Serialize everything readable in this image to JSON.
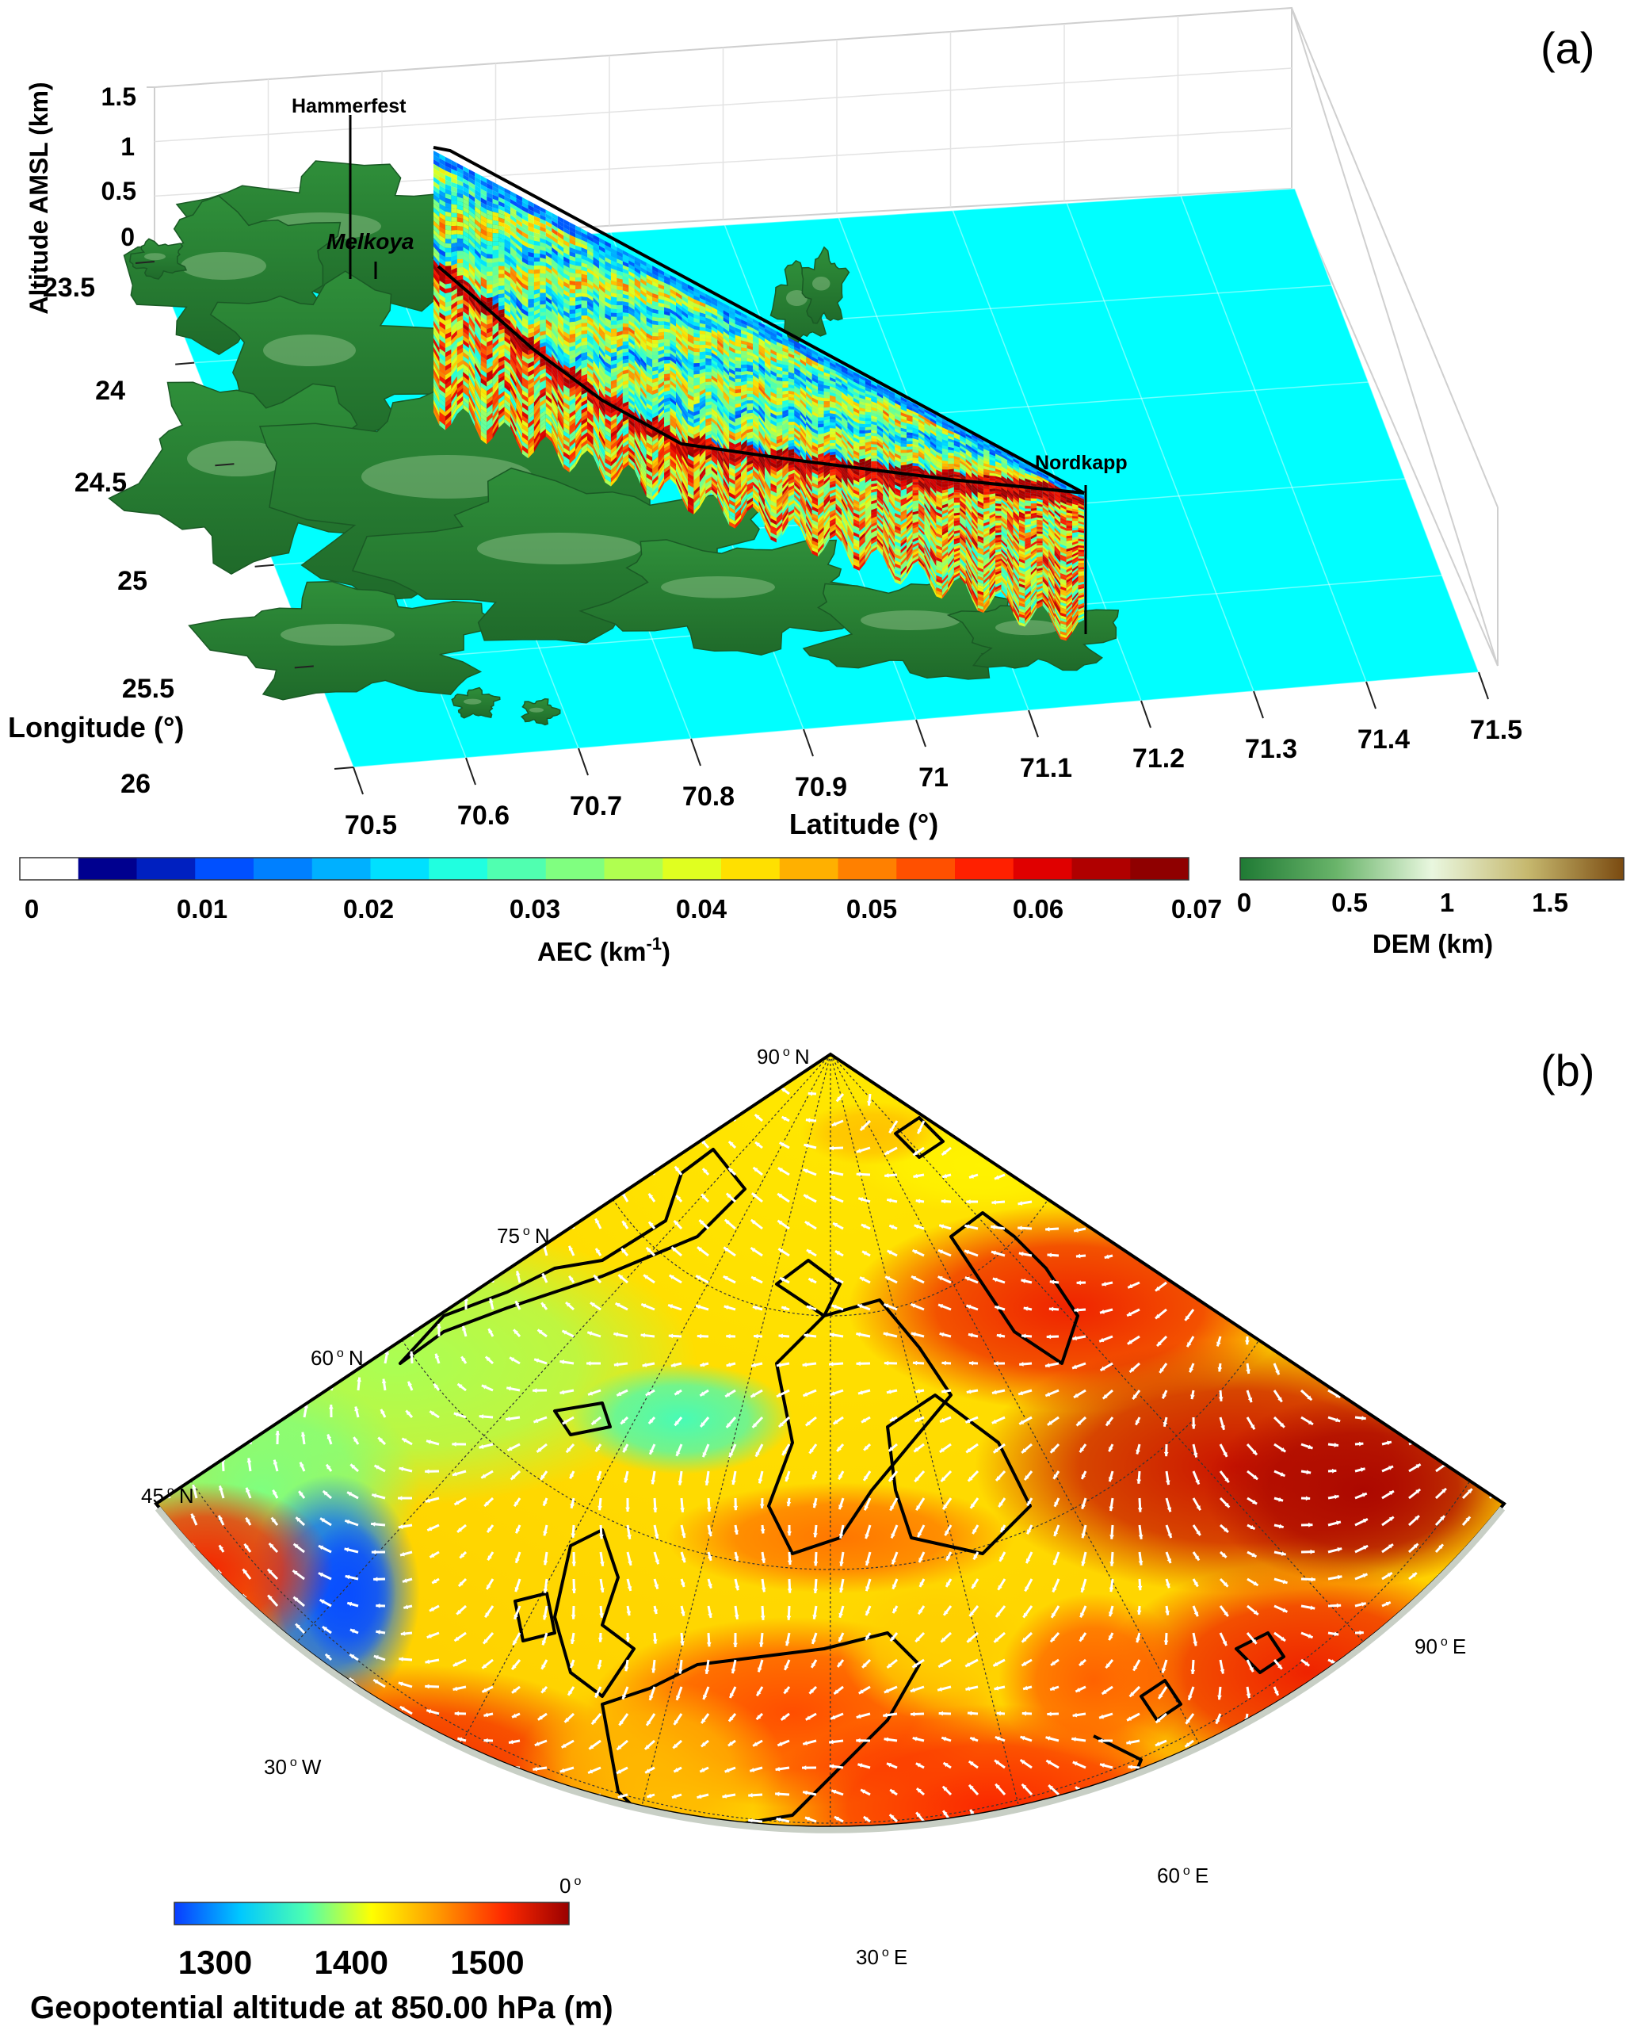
{
  "panel_a": {
    "label": "(a)",
    "axes": {
      "z_label": "Altitude AMSL (km)",
      "z_ticks": [
        "0",
        "0.5",
        "1",
        "1.5"
      ],
      "lon_label": "Longitude (°)",
      "lon_ticks": [
        "23.5",
        "24",
        "24.5",
        "25",
        "25.5",
        "26"
      ],
      "lat_label": "Latitude (°)",
      "lat_ticks": [
        "70.5",
        "70.6",
        "70.7",
        "70.8",
        "70.9",
        "71",
        "71.1",
        "71.2",
        "71.3",
        "71.4",
        "71.5"
      ]
    },
    "places": [
      {
        "name": "Hammerfest",
        "italic": false
      },
      {
        "name": "Melkoya",
        "italic": true
      },
      {
        "name": "Nordkapp",
        "italic": false
      }
    ],
    "colors": {
      "sea": "#00ffff",
      "land": "#3d8a3a",
      "land_light": "#b9ddb0"
    }
  },
  "aec_colorbar": {
    "label": "AEC (km",
    "label_exp": "-1",
    "label_close": ")",
    "ticks": [
      "0",
      "0.01",
      "0.02",
      "0.03",
      "0.04",
      "0.05",
      "0.06",
      "0.07"
    ],
    "range": [
      0,
      0.07
    ],
    "colors": [
      "#ffffff",
      "#00008f",
      "#0020c0",
      "#0050ff",
      "#0080ff",
      "#00b0ff",
      "#00e0ff",
      "#20ffe0",
      "#50ffb0",
      "#80ff80",
      "#b0ff50",
      "#e0ff20",
      "#ffe000",
      "#ffb000",
      "#ff8000",
      "#ff5000",
      "#ff2000",
      "#e00000",
      "#b00000",
      "#8f0000"
    ]
  },
  "dem_colorbar": {
    "label": "DEM (km)",
    "ticks": [
      "0",
      "0.5",
      "1",
      "1.5"
    ],
    "range": [
      0,
      1.8
    ],
    "colors": [
      "#1f7a34",
      "#69b46a",
      "#e9f7df",
      "#c6b86e",
      "#7a4a10"
    ]
  },
  "panel_b": {
    "label": "(b)",
    "lat_labels": [
      {
        "deg": "90",
        "hemi": "N"
      },
      {
        "deg": "75",
        "hemi": "N"
      },
      {
        "deg": "60",
        "hemi": "N"
      },
      {
        "deg": "45",
        "hemi": "N"
      }
    ],
    "lon_labels": [
      {
        "deg": "30",
        "hemi": "W"
      },
      {
        "deg": "0",
        "hemi": ""
      },
      {
        "deg": "30",
        "hemi": "E"
      },
      {
        "deg": "60",
        "hemi": "E"
      },
      {
        "deg": "90",
        "hemi": "E"
      }
    ],
    "colorbar": {
      "ticks": [
        "1300",
        "1400",
        "1500"
      ],
      "range": [
        1270,
        1560
      ],
      "title": "Geopotential altitude at 850.00 hPa (m)",
      "colors": [
        "#0a3cff",
        "#00c8ff",
        "#4dffb0",
        "#ffff00",
        "#ff9a00",
        "#ff2a00",
        "#9a0000"
      ]
    }
  }
}
